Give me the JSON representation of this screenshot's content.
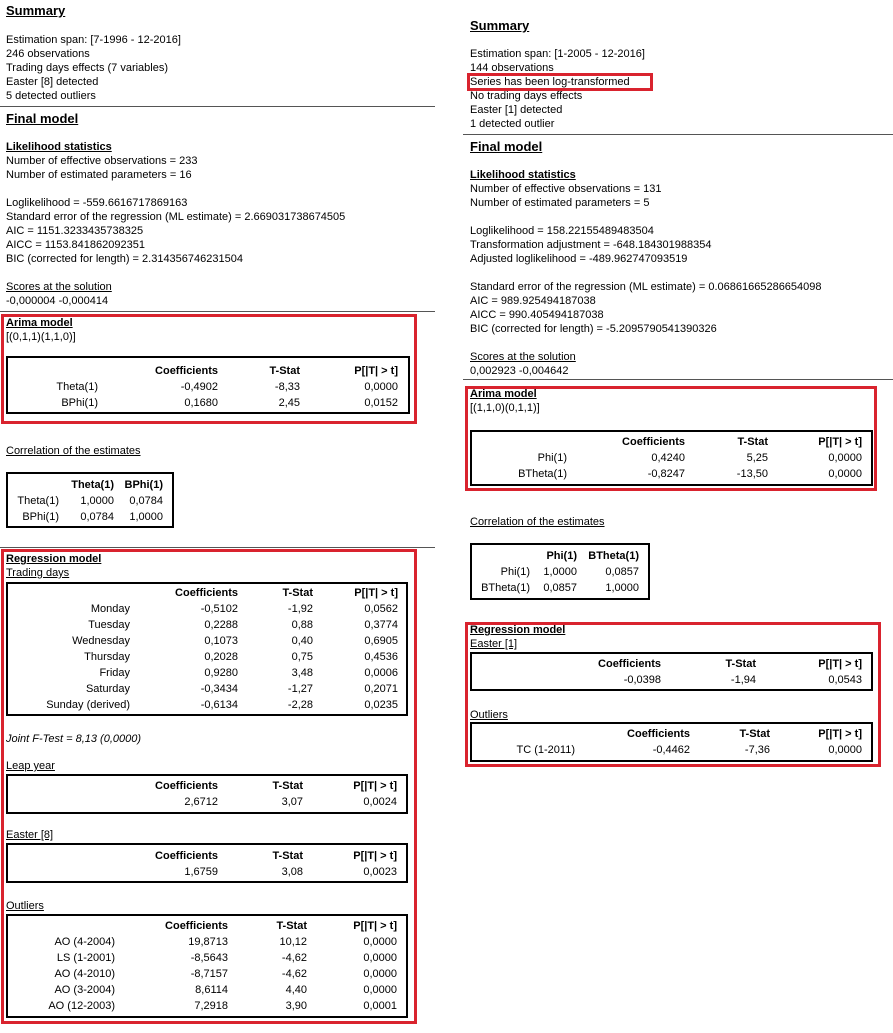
{
  "left": {
    "summary": {
      "title": "Summary",
      "lines": [
        "Estimation span: [7-1996 - 12-2016]",
        "246 observations",
        "Trading days effects (7 variables)",
        "Easter [8] detected",
        "5 detected outliers"
      ]
    },
    "final_model": "Final model",
    "likelihood": {
      "title": "Likelihood statistics",
      "lines": [
        "Number of effective observations = 233",
        "Number of estimated parameters = 16",
        "Loglikelihood = -559.6616717869163",
        "Standard error of the regression (ML estimate) = 2.669031738674505",
        "AIC = 1151.3233435738325",
        "AICC = 1153.841862092351",
        "BIC (corrected for length) = 2.314356746231504"
      ]
    },
    "scores": {
      "title": "Scores at the solution",
      "value": "-0,000004 -0,000414"
    },
    "arima": {
      "title": "Arima model",
      "spec": "[(0,1,1)(1,1,0)]",
      "table": {
        "headers": [
          "Coefficients",
          "T-Stat",
          "P[|T| > t]"
        ],
        "rows": [
          [
            "Theta(1)",
            "-0,4902",
            "-8,33",
            "0,0000"
          ],
          [
            "BPhi(1)",
            "0,1680",
            "2,45",
            "0,0152"
          ]
        ]
      }
    },
    "correlation": {
      "title": "Correlation of the estimates",
      "table": {
        "headers": [
          "Theta(1)",
          "BPhi(1)"
        ],
        "rows": [
          [
            "Theta(1)",
            "1,0000",
            "0,0784"
          ],
          [
            "BPhi(1)",
            "0,0784",
            "1,0000"
          ]
        ]
      }
    },
    "regression": {
      "title": "Regression model",
      "sections": [
        {
          "title": "Trading days",
          "table": {
            "headers": [
              "Coefficients",
              "T-Stat",
              "P[|T| > t]"
            ],
            "rows": [
              [
                "Monday",
                "-0,5102",
                "-1,92",
                "0,0562"
              ],
              [
                "Tuesday",
                "0,2288",
                "0,88",
                "0,3774"
              ],
              [
                "Wednesday",
                "0,1073",
                "0,40",
                "0,6905"
              ],
              [
                "Thursday",
                "0,2028",
                "0,75",
                "0,4536"
              ],
              [
                "Friday",
                "0,9280",
                "3,48",
                "0,0006"
              ],
              [
                "Saturday",
                "-0,3434",
                "-1,27",
                "0,2071"
              ],
              [
                "Sunday (derived)",
                "-0,6134",
                "-2,28",
                "0,0235"
              ]
            ]
          },
          "note": "Joint F-Test = 8,13 (0,0000)"
        },
        {
          "title": "Leap year",
          "table": {
            "headers": [
              "Coefficients",
              "T-Stat",
              "P[|T| > t]"
            ],
            "rows": [
              [
                "2,6712",
                "3,07",
                "0,0024"
              ]
            ]
          }
        },
        {
          "title": "Easter [8]",
          "table": {
            "headers": [
              "Coefficients",
              "T-Stat",
              "P[|T| > t]"
            ],
            "rows": [
              [
                "1,6759",
                "3,08",
                "0,0023"
              ]
            ]
          }
        },
        {
          "title": "Outliers",
          "table": {
            "headers": [
              "Coefficients",
              "T-Stat",
              "P[|T| > t]"
            ],
            "rows": [
              [
                "AO (4-2004)",
                "19,8713",
                "10,12",
                "0,0000"
              ],
              [
                "LS (1-2001)",
                "-8,5643",
                "-4,62",
                "0,0000"
              ],
              [
                "AO (4-2010)",
                "-8,7157",
                "-4,62",
                "0,0000"
              ],
              [
                "AO (3-2004)",
                "8,6114",
                "4,40",
                "0,0000"
              ],
              [
                "AO (12-2003)",
                "7,2918",
                "3,90",
                "0,0001"
              ]
            ]
          }
        }
      ]
    }
  },
  "right": {
    "summary": {
      "title": "Summary",
      "lines": [
        "Estimation span: [1-2005 - 12-2016]",
        "144 observations",
        "Series has been log-transformed",
        "No trading days effects",
        "Easter [1] detected",
        "1 detected outlier"
      ]
    },
    "final_model": "Final model",
    "likelihood": {
      "title": "Likelihood statistics",
      "lines": [
        "Number of effective observations = 131",
        "Number of estimated parameters = 5",
        "Loglikelihood = 158.22155489483504",
        "Transformation adjustment = -648.184301988354",
        "Adjusted loglikelihood = -489.962747093519",
        "Standard error of the regression (ML estimate) = 0.06861665286654098",
        "AIC = 989.925494187038",
        "AICC = 990.405494187038",
        "BIC (corrected for length) = -5.2095790541390326"
      ]
    },
    "scores": {
      "title": "Scores at the solution",
      "value": "0,002923 -0,004642"
    },
    "arima": {
      "title": "Arima model",
      "spec": "[(1,1,0)(0,1,1)]",
      "table": {
        "headers": [
          "Coefficients",
          "T-Stat",
          "P[|T| > t]"
        ],
        "rows": [
          [
            "Phi(1)",
            "0,4240",
            "5,25",
            "0,0000"
          ],
          [
            "BTheta(1)",
            "-0,8247",
            "-13,50",
            "0,0000"
          ]
        ]
      }
    },
    "correlation": {
      "title": "Correlation of the estimates",
      "table": {
        "headers": [
          "Phi(1)",
          "BTheta(1)"
        ],
        "rows": [
          [
            "Phi(1)",
            "1,0000",
            "0,0857"
          ],
          [
            "BTheta(1)",
            "0,0857",
            "1,0000"
          ]
        ]
      }
    },
    "regression": {
      "title": "Regression model",
      "sections": [
        {
          "title": "Easter [1]",
          "table": {
            "headers": [
              "Coefficients",
              "T-Stat",
              "P[|T| > t]"
            ],
            "rows": [
              [
                "-0,0398",
                "-1,94",
                "0,0543"
              ]
            ]
          }
        },
        {
          "title": "Outliers",
          "table": {
            "headers": [
              "Coefficients",
              "T-Stat",
              "P[|T| > t]"
            ],
            "rows": [
              [
                "TC (1-2011)",
                "-0,4462",
                "-7,36",
                "0,0000"
              ]
            ]
          }
        }
      ]
    }
  }
}
